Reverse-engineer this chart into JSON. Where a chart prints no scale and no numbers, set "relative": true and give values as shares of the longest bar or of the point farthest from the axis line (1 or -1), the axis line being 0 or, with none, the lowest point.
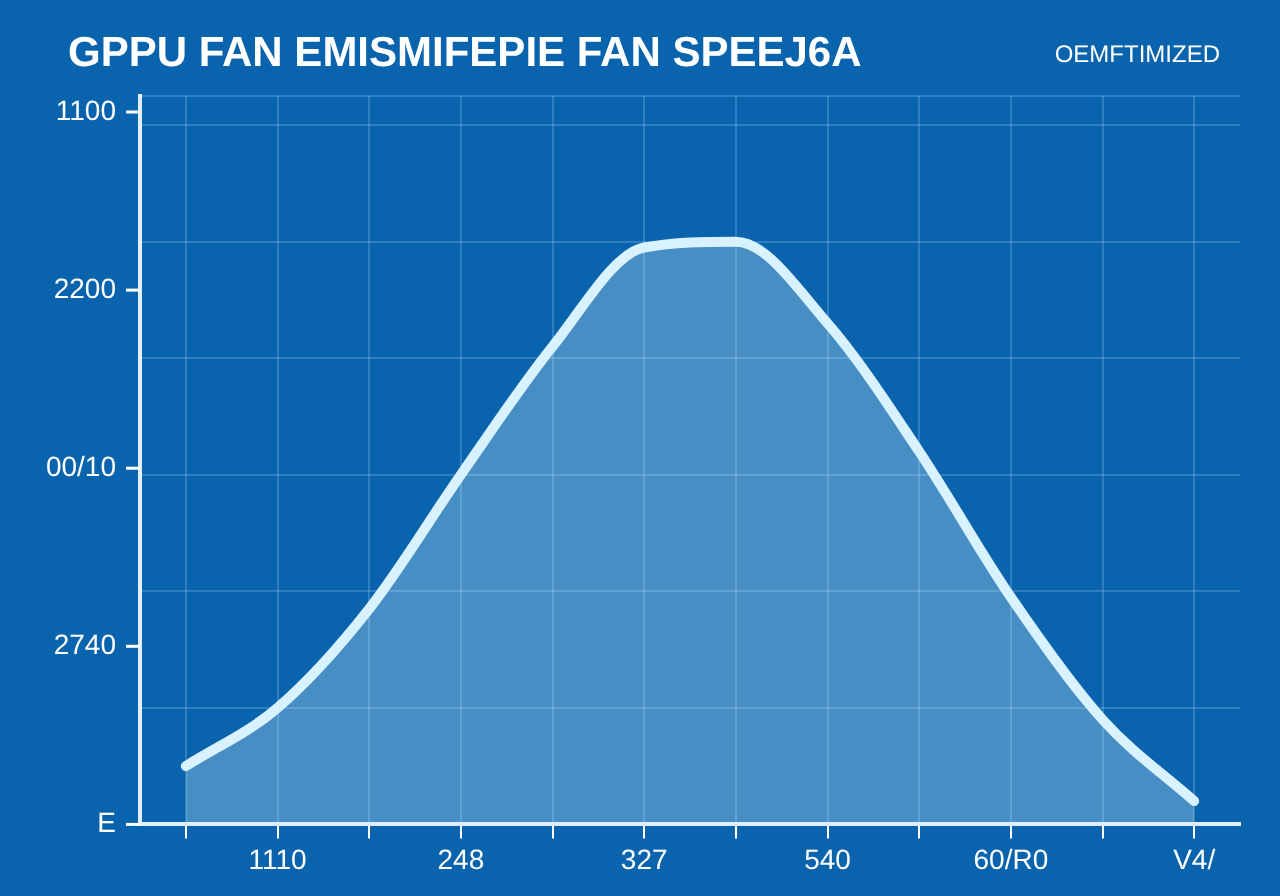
{
  "chart_data": {
    "type": "area",
    "title": "GPPU FAN EMISMIFEPIE FAN SPEEJ6A",
    "annotations": [
      "OEMFTIMIZED",
      "1100",
      "2200",
      "00/10",
      "2740",
      "E"
    ],
    "categories": [
      null,
      "1110",
      null,
      "248",
      null,
      "327",
      null,
      "540",
      null,
      "60/R0",
      null,
      "V4/"
    ],
    "relative": true,
    "series": [
      {
        "color": "#d8f2ff",
        "values": [
          0.1,
          0.2,
          0.37,
          0.6,
          0.82,
          0.99,
          1,
          0.86,
          0.64,
          0.39,
          0.18,
          0.04
        ]
      }
    ],
    "grid": true,
    "legend": false,
    "marker": "none",
    "line_style": "solid"
  }
}
